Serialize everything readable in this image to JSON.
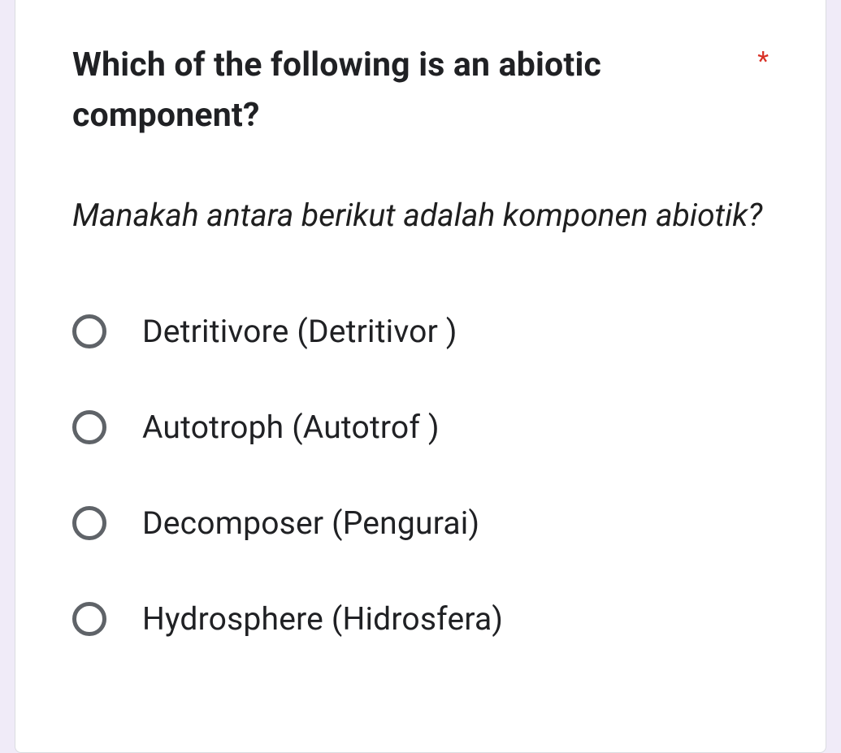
{
  "colors": {
    "page_background": "#f0ebf8",
    "card_background": "#ffffff",
    "card_border": "#dadce0",
    "text_primary": "#202124",
    "required_asterisk": "#d93025",
    "radio_border": "#5f6368"
  },
  "typography": {
    "question_fontsize": 41,
    "question_fontweight": 700,
    "subtitle_fontsize": 39,
    "subtitle_fontstyle": "italic",
    "option_fontsize": 39,
    "font_family": "Roboto, Arial, sans-serif"
  },
  "question": {
    "text": "Which of the following is an abiotic component?",
    "required": true,
    "required_mark": "*",
    "translation": "Manakah antara berikut adalah komponen abiotik?"
  },
  "options": [
    {
      "label": "Detritivore (Detritivor )",
      "selected": false
    },
    {
      "label": "Autotroph (Autotrof )",
      "selected": false
    },
    {
      "label": "Decomposer (Pengurai)",
      "selected": false
    },
    {
      "label": "Hydrosphere (Hidrosfera)",
      "selected": false
    }
  ]
}
